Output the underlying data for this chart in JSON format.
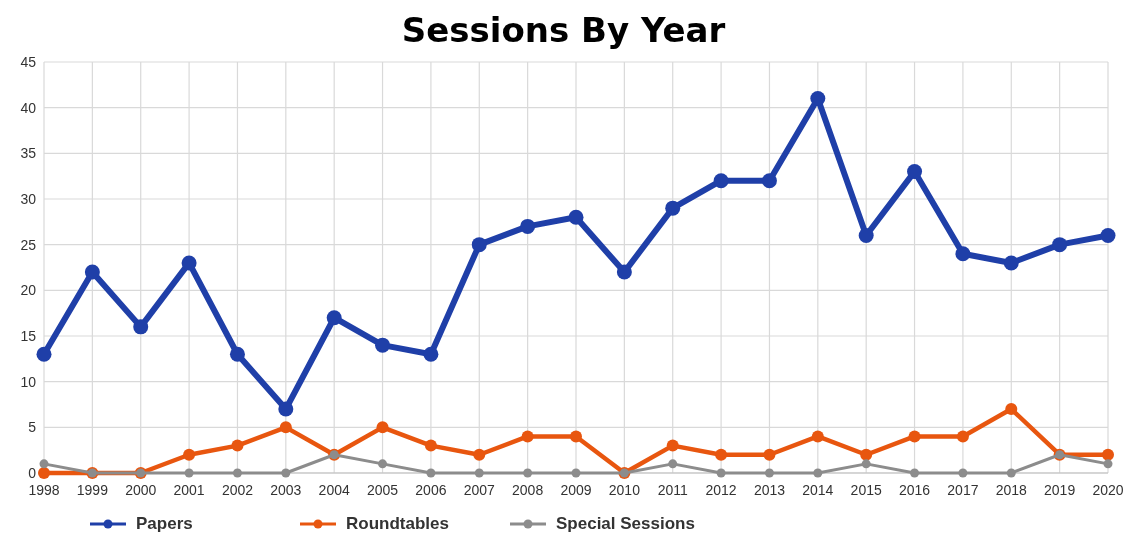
{
  "chart_data": {
    "type": "line",
    "title": "Sessions By Year",
    "categories": [
      "1998",
      "1999",
      "2000",
      "2001",
      "2002",
      "2003",
      "2004",
      "2005",
      "2006",
      "2007",
      "2008",
      "2009",
      "2010",
      "2011",
      "2012",
      "2013",
      "2014",
      "2015",
      "2016",
      "2017",
      "2018",
      "2019",
      "2020"
    ],
    "series": [
      {
        "name": "Papers",
        "color": "#1f3fa8",
        "values": [
          13,
          22,
          16,
          23,
          13,
          7,
          17,
          14,
          13,
          25,
          27,
          28,
          22,
          29,
          32,
          32,
          41,
          26,
          33,
          24,
          23,
          25,
          26
        ]
      },
      {
        "name": "Roundtables",
        "color": "#e8560f",
        "values": [
          0,
          0,
          0,
          2,
          3,
          5,
          2,
          5,
          3,
          2,
          4,
          4,
          0,
          3,
          2,
          2,
          4,
          2,
          4,
          4,
          7,
          2,
          2
        ]
      },
      {
        "name": "Special Sessions",
        "color": "#8c8c8c",
        "values": [
          1,
          0,
          0,
          0,
          0,
          0,
          2,
          1,
          0,
          0,
          0,
          0,
          0,
          1,
          0,
          0,
          0,
          1,
          0,
          0,
          0,
          2,
          1
        ]
      }
    ],
    "ylim": [
      0,
      45
    ],
    "yticks": [
      0,
      5,
      10,
      15,
      20,
      25,
      30,
      35,
      40,
      45
    ],
    "grid": true,
    "legend": "bottom",
    "marker": "circle",
    "line_style": "solid"
  }
}
